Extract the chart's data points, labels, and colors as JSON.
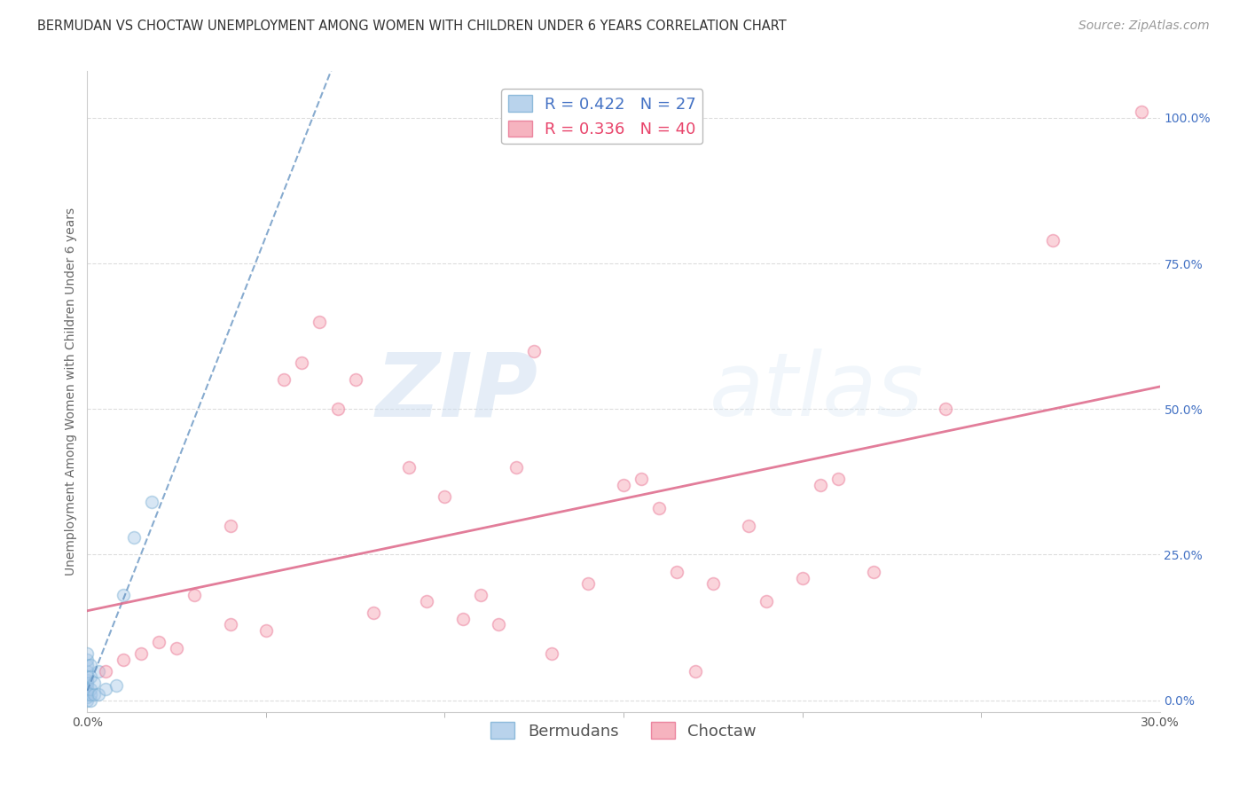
{
  "title": "BERMUDAN VS CHOCTAW UNEMPLOYMENT AMONG WOMEN WITH CHILDREN UNDER 6 YEARS CORRELATION CHART",
  "source": "Source: ZipAtlas.com",
  "ylabel": "Unemployment Among Women with Children Under 6 years",
  "xlim": [
    0.0,
    0.3
  ],
  "ylim": [
    -0.02,
    1.08
  ],
  "yticks_right": [
    0.0,
    0.25,
    0.5,
    0.75,
    1.0
  ],
  "yticks_right_labels": [
    "0.0%",
    "25.0%",
    "50.0%",
    "75.0%",
    "100.0%"
  ],
  "legend_r_bermudan": "R = 0.422",
  "legend_n_bermudan": "N = 27",
  "legend_r_choctaw": "R = 0.336",
  "legend_n_choctaw": "N = 40",
  "bermudan_color": "#a8c8e8",
  "choctaw_color": "#f4a0b0",
  "bermudan_edge_color": "#7aafd4",
  "choctaw_edge_color": "#e87090",
  "bermudan_line_color": "#5588bb",
  "choctaw_line_color": "#dd6688",
  "watermark_zip": "ZIP",
  "watermark_atlas": "atlas",
  "background_color": "#ffffff",
  "grid_color": "#dddddd",
  "bermudan_x": [
    0.0,
    0.0,
    0.0,
    0.0,
    0.0,
    0.0,
    0.0,
    0.0,
    0.0,
    0.0,
    0.0,
    0.0,
    0.0,
    0.001,
    0.001,
    0.001,
    0.001,
    0.001,
    0.002,
    0.002,
    0.003,
    0.003,
    0.005,
    0.008,
    0.01,
    0.013,
    0.018
  ],
  "bermudan_y": [
    0.0,
    0.005,
    0.01,
    0.015,
    0.02,
    0.025,
    0.03,
    0.035,
    0.04,
    0.05,
    0.06,
    0.07,
    0.08,
    0.0,
    0.01,
    0.02,
    0.04,
    0.06,
    0.01,
    0.03,
    0.01,
    0.05,
    0.02,
    0.025,
    0.18,
    0.28,
    0.34
  ],
  "choctaw_x": [
    0.005,
    0.01,
    0.015,
    0.02,
    0.025,
    0.03,
    0.04,
    0.04,
    0.05,
    0.055,
    0.06,
    0.065,
    0.07,
    0.075,
    0.08,
    0.09,
    0.095,
    0.1,
    0.105,
    0.11,
    0.115,
    0.12,
    0.125,
    0.13,
    0.14,
    0.15,
    0.155,
    0.16,
    0.165,
    0.17,
    0.175,
    0.185,
    0.19,
    0.2,
    0.205,
    0.21,
    0.22,
    0.24,
    0.27,
    0.295
  ],
  "choctaw_y": [
    0.05,
    0.07,
    0.08,
    0.1,
    0.09,
    0.18,
    0.13,
    0.3,
    0.12,
    0.55,
    0.58,
    0.65,
    0.5,
    0.55,
    0.15,
    0.4,
    0.17,
    0.35,
    0.14,
    0.18,
    0.13,
    0.4,
    0.6,
    0.08,
    0.2,
    0.37,
    0.38,
    0.33,
    0.22,
    0.05,
    0.2,
    0.3,
    0.17,
    0.21,
    0.37,
    0.38,
    0.22,
    0.5,
    0.79,
    1.01
  ],
  "title_fontsize": 10.5,
  "axis_label_fontsize": 10,
  "tick_fontsize": 10,
  "legend_fontsize": 13,
  "source_fontsize": 10,
  "marker_size": 100,
  "marker_alpha": 0.45,
  "right_tick_color": "#4472C4"
}
